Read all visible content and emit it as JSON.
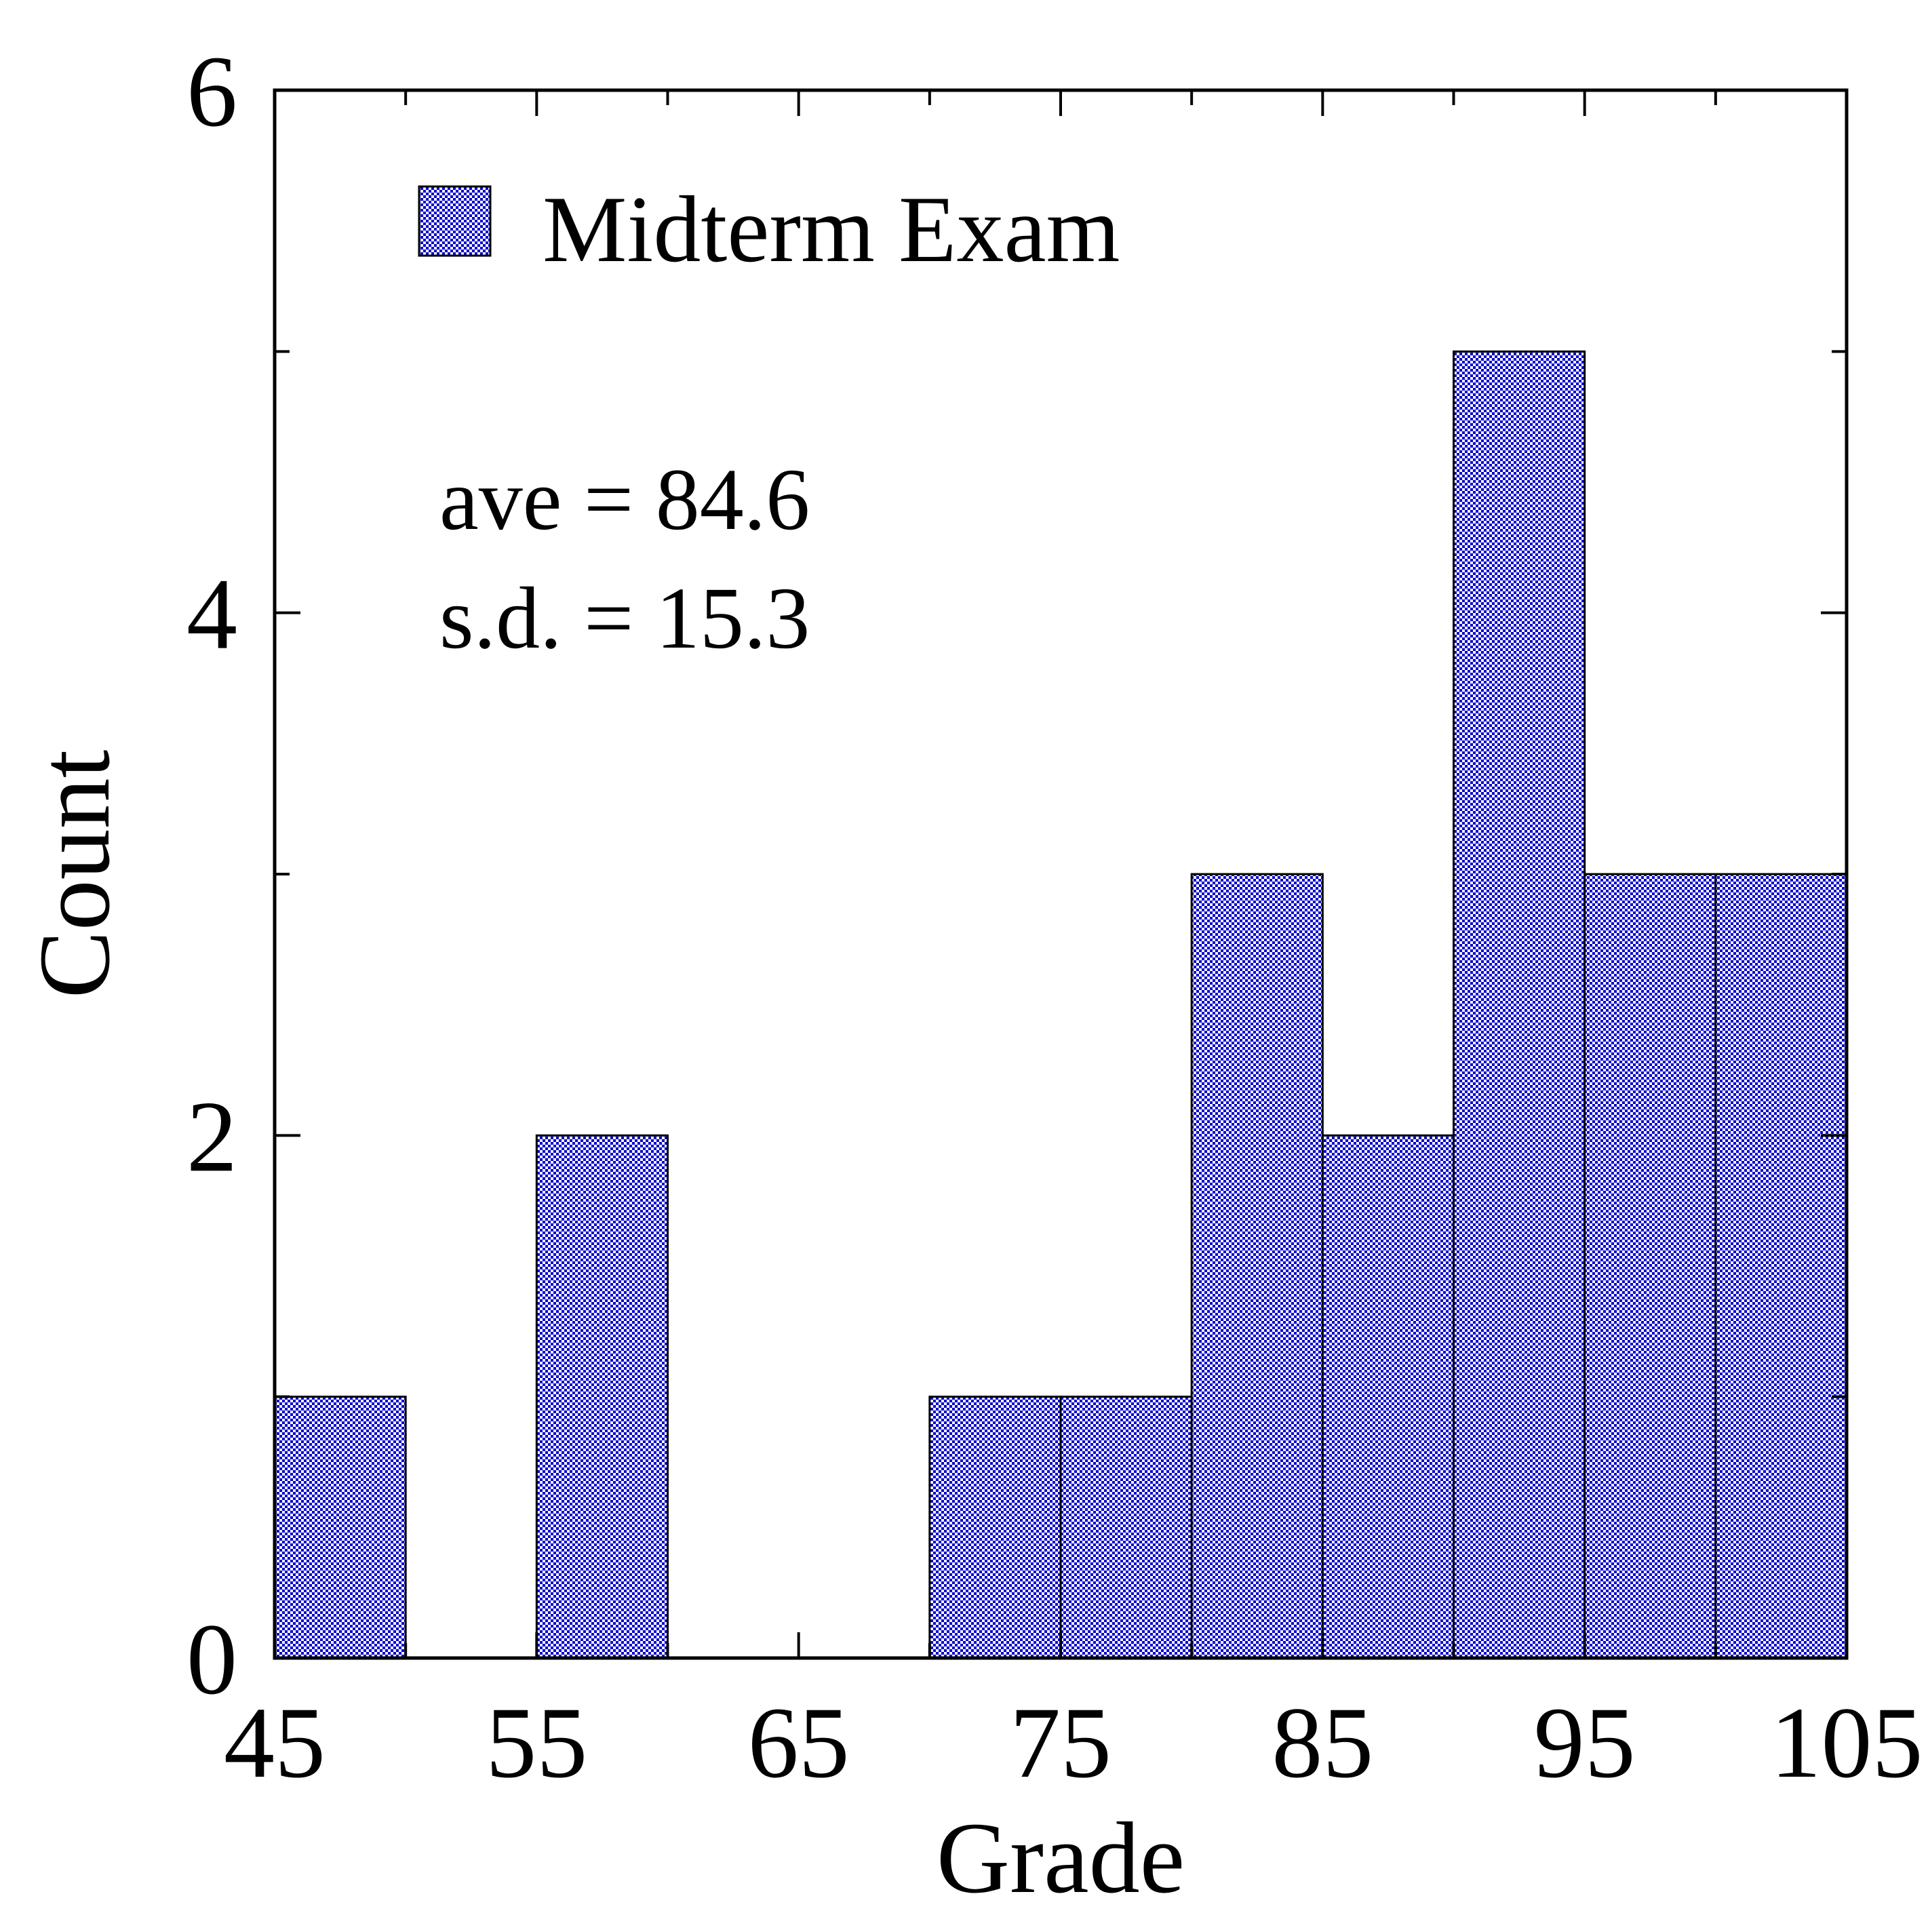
{
  "chart_data": {
    "type": "bar",
    "subtype": "histogram",
    "title": "",
    "xlabel": "Grade",
    "ylabel": "Count",
    "xlim": [
      45,
      105
    ],
    "ylim": [
      0,
      6
    ],
    "x_ticks": [
      45,
      55,
      65,
      75,
      85,
      95,
      105
    ],
    "x_tick_labels": [
      "45",
      "55",
      "65",
      "75",
      "85",
      "95",
      "105"
    ],
    "x_minor_step": 5,
    "y_ticks": [
      0,
      2,
      4,
      6
    ],
    "y_tick_labels": [
      "0",
      "2",
      "4",
      "6"
    ],
    "y_minor_step": 1,
    "bin_width": 5,
    "bins": [
      {
        "x0": 45,
        "x1": 50,
        "count": 1
      },
      {
        "x0": 55,
        "x1": 60,
        "count": 2
      },
      {
        "x0": 70,
        "x1": 75,
        "count": 1
      },
      {
        "x0": 75,
        "x1": 80,
        "count": 1
      },
      {
        "x0": 80,
        "x1": 85,
        "count": 3
      },
      {
        "x0": 85,
        "x1": 90,
        "count": 2
      },
      {
        "x0": 90,
        "x1": 95,
        "count": 5
      },
      {
        "x0": 95,
        "x1": 100,
        "count": 3
      },
      {
        "x0": 100,
        "x1": 105,
        "count": 3
      }
    ],
    "series": [
      {
        "name": "Midterm Exam"
      }
    ],
    "legend_position": "top-left",
    "annotations": [
      "ave = 84.6",
      "s.d. = 15.3"
    ],
    "grid": false,
    "colors": {
      "fill_primary": "#0000cc",
      "fill_secondary": "#ffffff",
      "edge": "#000000"
    }
  }
}
